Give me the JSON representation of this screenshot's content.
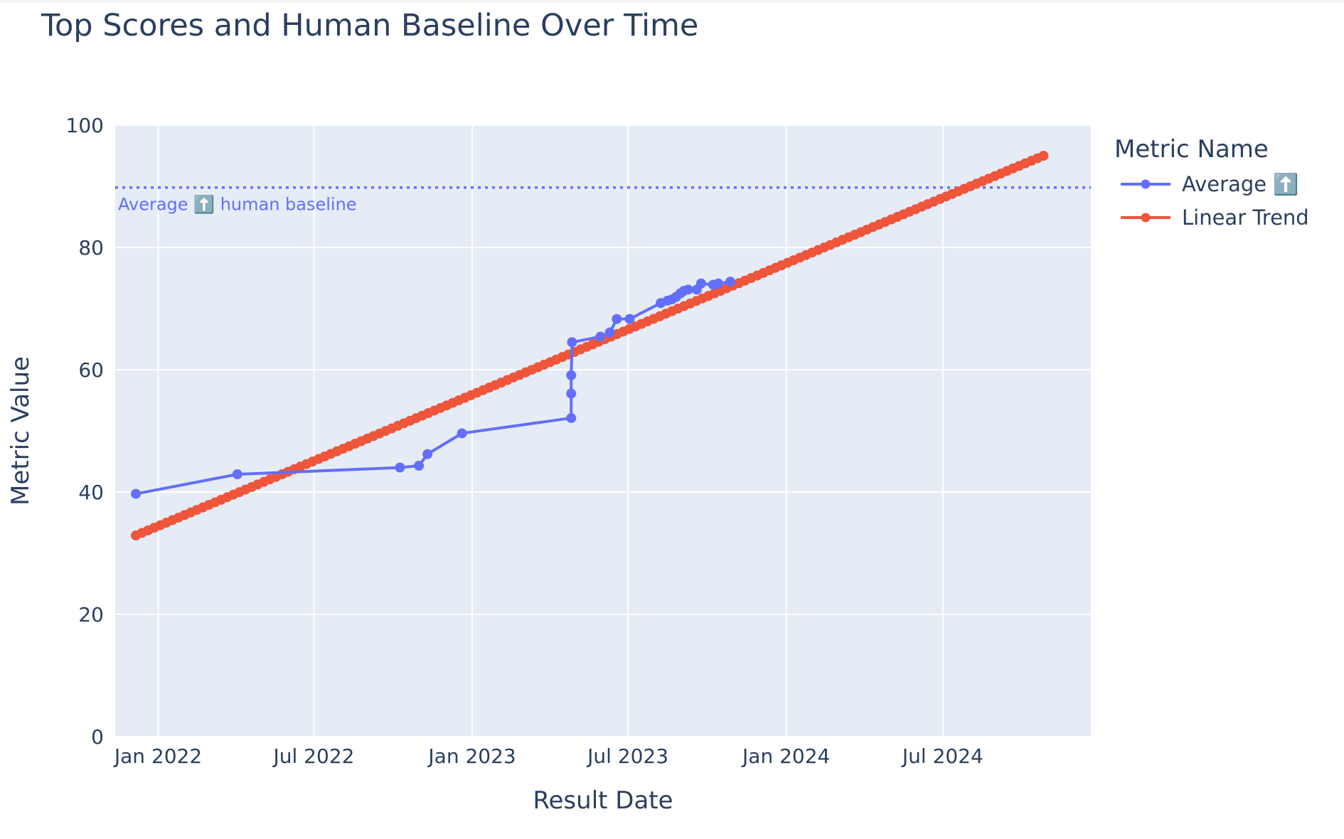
{
  "chart_data": {
    "type": "line",
    "title": "Top Scores and Human Baseline Over Time",
    "xlabel": "Result Date",
    "ylabel": "Metric Value",
    "legend_title": "Metric Name",
    "legend_position": "right",
    "grid": true,
    "ylim": [
      0,
      100
    ],
    "xlim": [
      "2021-11-12",
      "2024-12-20"
    ],
    "x_ticks": [
      "2022-01-01",
      "2022-07-01",
      "2023-01-01",
      "2023-07-01",
      "2024-01-01",
      "2024-07-01"
    ],
    "x_tick_labels": [
      "Jan 2022",
      "Jul 2022",
      "Jan 2023",
      "Jul 2023",
      "Jan 2024",
      "Jul 2024"
    ],
    "y_ticks": [
      0,
      20,
      40,
      60,
      80,
      100
    ],
    "y_tick_labels": [
      "0",
      "20",
      "40",
      "60",
      "80",
      "100"
    ],
    "baseline": {
      "value": 89.8,
      "label": "Average ⬆️ human baseline",
      "color": "#636efa"
    },
    "series": [
      {
        "name": "Average ⬆️",
        "color": "#636efa",
        "points": [
          {
            "x": "2021-12-06",
            "y": 39.7
          },
          {
            "x": "2022-04-03",
            "y": 42.9
          },
          {
            "x": "2022-10-09",
            "y": 44.0
          },
          {
            "x": "2022-10-31",
            "y": 44.3
          },
          {
            "x": "2022-11-10",
            "y": 46.2
          },
          {
            "x": "2022-12-20",
            "y": 49.6
          },
          {
            "x": "2023-04-26",
            "y": 52.1
          },
          {
            "x": "2023-04-26",
            "y": 56.1
          },
          {
            "x": "2023-04-26",
            "y": 59.1
          },
          {
            "x": "2023-04-27",
            "y": 64.5
          },
          {
            "x": "2023-05-30",
            "y": 65.4
          },
          {
            "x": "2023-06-10",
            "y": 66.1
          },
          {
            "x": "2023-06-18",
            "y": 68.3
          },
          {
            "x": "2023-07-03",
            "y": 68.3
          },
          {
            "x": "2023-08-08",
            "y": 70.9
          },
          {
            "x": "2023-08-16",
            "y": 71.3
          },
          {
            "x": "2023-08-21",
            "y": 71.5
          },
          {
            "x": "2023-08-26",
            "y": 71.9
          },
          {
            "x": "2023-08-31",
            "y": 72.5
          },
          {
            "x": "2023-09-04",
            "y": 72.9
          },
          {
            "x": "2023-09-09",
            "y": 73.1
          },
          {
            "x": "2023-09-19",
            "y": 73.1
          },
          {
            "x": "2023-09-24",
            "y": 74.1
          },
          {
            "x": "2023-10-08",
            "y": 73.9
          },
          {
            "x": "2023-10-14",
            "y": 74.1
          },
          {
            "x": "2023-10-28",
            "y": 74.4
          }
        ]
      },
      {
        "name": "Linear Trend",
        "color": "#ef553b",
        "start": {
          "x": "2021-12-06",
          "y": 32.9
        },
        "end": {
          "x": "2024-10-26",
          "y": 95.0
        },
        "point_count": 150
      }
    ]
  }
}
